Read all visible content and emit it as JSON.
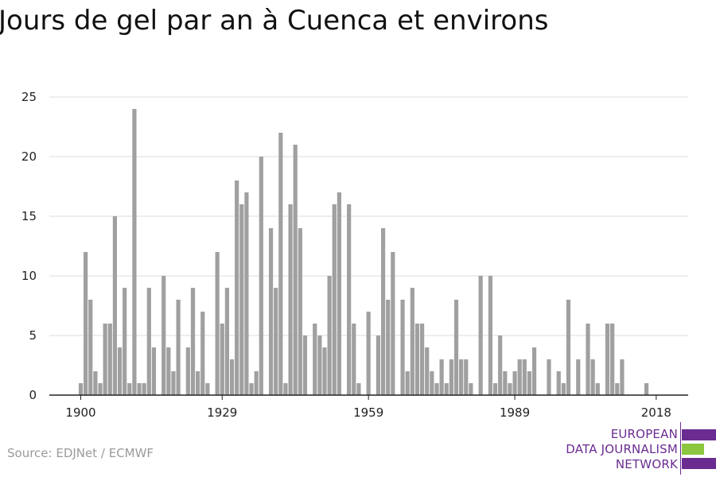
{
  "header": {
    "title": "Jours de gel par an à Cuenca et environs"
  },
  "footer": {
    "source": "Source: EDJNet / ECMWF"
  },
  "logo": {
    "lines": [
      "EUROPEAN",
      "DATA JOURNALISM",
      "NETWORK"
    ],
    "colors": {
      "purple": "#6a2c91",
      "green": "#8dc63f"
    }
  },
  "colors": {
    "bar": "#a0a0a0",
    "grid": "#dddddd",
    "axis": "#222222",
    "text": "#222222"
  },
  "chart_data": {
    "type": "bar",
    "title": "Jours de gel par an à Cuenca et environs",
    "xlabel": "",
    "ylabel": "",
    "ylim": [
      0,
      25
    ],
    "yticks": [
      0,
      5,
      10,
      15,
      20,
      25
    ],
    "xticks": [
      1900,
      1929,
      1959,
      1989,
      2018
    ],
    "grid": true,
    "categories": [
      1900,
      1901,
      1902,
      1903,
      1904,
      1905,
      1906,
      1907,
      1908,
      1909,
      1910,
      1911,
      1912,
      1913,
      1914,
      1915,
      1916,
      1917,
      1918,
      1919,
      1920,
      1921,
      1922,
      1923,
      1924,
      1925,
      1926,
      1927,
      1928,
      1929,
      1930,
      1931,
      1932,
      1933,
      1934,
      1935,
      1936,
      1937,
      1938,
      1939,
      1940,
      1941,
      1942,
      1943,
      1944,
      1945,
      1946,
      1947,
      1948,
      1949,
      1950,
      1951,
      1952,
      1953,
      1954,
      1955,
      1956,
      1957,
      1958,
      1959,
      1960,
      1961,
      1962,
      1963,
      1964,
      1965,
      1966,
      1967,
      1968,
      1969,
      1970,
      1971,
      1972,
      1973,
      1974,
      1975,
      1976,
      1977,
      1978,
      1979,
      1980,
      1981,
      1982,
      1983,
      1984,
      1985,
      1986,
      1987,
      1988,
      1989,
      1990,
      1991,
      1992,
      1993,
      1994,
      1995,
      1996,
      1997,
      1998,
      1999,
      2000,
      2001,
      2002,
      2003,
      2004,
      2005,
      2006,
      2007,
      2008,
      2009,
      2010,
      2011,
      2012,
      2013,
      2014,
      2015,
      2016,
      2017,
      2018
    ],
    "values": [
      1,
      12,
      8,
      2,
      1,
      6,
      6,
      15,
      4,
      9,
      1,
      24,
      1,
      1,
      9,
      4,
      0,
      10,
      4,
      2,
      8,
      0,
      4,
      9,
      2,
      7,
      1,
      0,
      12,
      6,
      9,
      3,
      18,
      16,
      17,
      1,
      2,
      20,
      0,
      14,
      9,
      22,
      1,
      16,
      21,
      14,
      5,
      0,
      6,
      5,
      4,
      10,
      16,
      17,
      0,
      16,
      6,
      1,
      0,
      7,
      0,
      5,
      14,
      8,
      12,
      0,
      8,
      2,
      9,
      6,
      6,
      4,
      2,
      1,
      3,
      1,
      3,
      8,
      3,
      3,
      1,
      0,
      10,
      0,
      10,
      1,
      5,
      2,
      1,
      2,
      3,
      3,
      2,
      4,
      0,
      0,
      3,
      0,
      2,
      1,
      8,
      0,
      3,
      0,
      6,
      3,
      1,
      0,
      6,
      6,
      1,
      3,
      0,
      0,
      0,
      0,
      1,
      0,
      0
    ]
  }
}
